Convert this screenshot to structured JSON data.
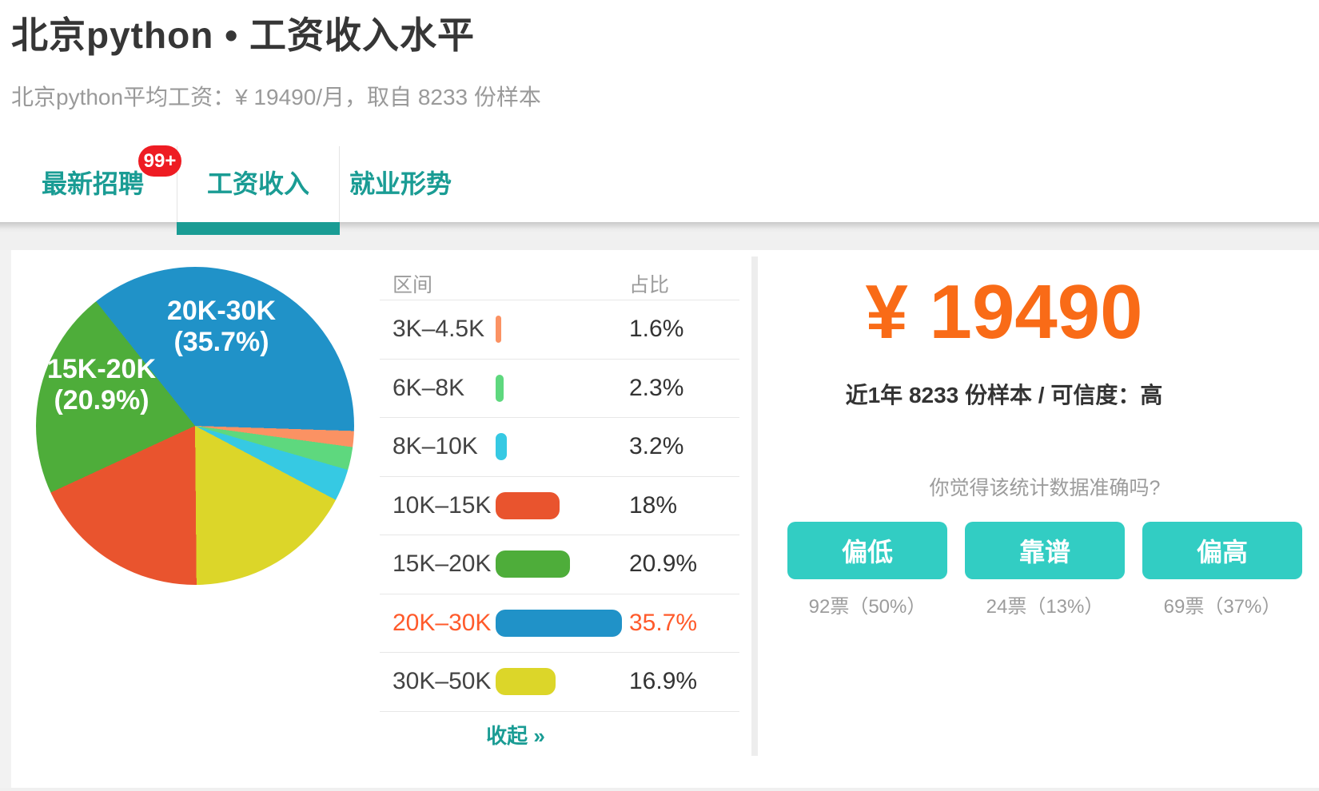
{
  "header": {
    "title": "北京python • 工资收入水平",
    "subtitle": "北京python平均工资：¥ 19490/月，取自 8233 份样本"
  },
  "tabs": [
    {
      "label": "最新招聘",
      "badge": "99+",
      "active": false
    },
    {
      "label": "工资收入",
      "active": true
    },
    {
      "label": "就业形势",
      "active": false
    }
  ],
  "colors": {
    "accent_teal": "#1a9c94",
    "button_teal": "#32cdc3",
    "highlight_orange": "#ff5a2b",
    "salary_orange": "#f96b17",
    "badge_red": "#ee1c23"
  },
  "chart_data": {
    "type": "pie",
    "categories": [
      "3K–4.5K",
      "6K–8K",
      "8K–10K",
      "10K–15K",
      "15K–20K",
      "20K–30K",
      "30K–50K"
    ],
    "values": [
      1.6,
      2.3,
      3.2,
      18,
      20.9,
      35.7,
      16.9
    ],
    "colors": [
      "#fb9263",
      "#5ed87e",
      "#36c9e3",
      "#e9542e",
      "#4ead3a",
      "#2092c8",
      "#dcd629"
    ],
    "unit": "percent",
    "legend_position": "none",
    "start_angle": -38.5,
    "slice_order": [
      5,
      0,
      1,
      2,
      6,
      3,
      4
    ],
    "callouts": [
      {
        "line1": "20K-30K",
        "line2": "(35.7%)"
      },
      {
        "line1": "15K-20K",
        "line2": "(20.9%)"
      }
    ]
  },
  "table": {
    "headers": [
      "区间",
      "占比"
    ],
    "rows": [
      {
        "range": "3K–4.5K",
        "pct": "1.6%",
        "value": 1.6,
        "color": "#fb9263",
        "highlight": false
      },
      {
        "range": "6K–8K",
        "pct": "2.3%",
        "value": 2.3,
        "color": "#5ed87e",
        "highlight": false
      },
      {
        "range": "8K–10K",
        "pct": "3.2%",
        "value": 3.2,
        "color": "#36c9e3",
        "highlight": false
      },
      {
        "range": "10K–15K",
        "pct": "18%",
        "value": 18,
        "color": "#e9542e",
        "highlight": false
      },
      {
        "range": "15K–20K",
        "pct": "20.9%",
        "value": 20.9,
        "color": "#4ead3a",
        "highlight": false
      },
      {
        "range": "20K–30K",
        "pct": "35.7%",
        "value": 35.7,
        "color": "#2092c8",
        "highlight": true
      },
      {
        "range": "30K–50K",
        "pct": "16.9%",
        "value": 16.9,
        "color": "#dcd629",
        "highlight": false
      }
    ],
    "collapse_label": "收起 »"
  },
  "summary": {
    "salary": "¥ 19490",
    "meta": "近1年 8233 份样本 / 可信度：高",
    "question": "你觉得该统计数据准确吗?",
    "votes": [
      {
        "label": "偏低",
        "count": "92票（50%）"
      },
      {
        "label": "靠谱",
        "count": "24票（13%）"
      },
      {
        "label": "偏高",
        "count": "69票（37%）"
      }
    ]
  }
}
